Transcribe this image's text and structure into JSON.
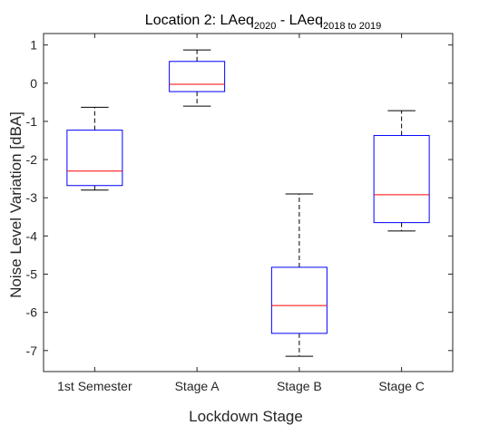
{
  "chart_data": {
    "type": "box",
    "title": {
      "parts": [
        {
          "text": "Location 2: LAeq",
          "sub": false
        },
        {
          "text": "2020",
          "sub": true
        },
        {
          "text": " - LAeq",
          "sub": false
        },
        {
          "text": "2018 to 2019",
          "sub": true
        }
      ]
    },
    "xlabel": "Lockdown Stage",
    "ylabel": "Noise Level Variation [dBA]",
    "categories": [
      "1st Semester",
      "Stage A",
      "Stage B",
      "Stage C"
    ],
    "boxes": [
      {
        "category": "1st Semester",
        "whisker_low": -2.8,
        "q1": -2.68,
        "median": -2.3,
        "q3": -1.23,
        "whisker_high": -0.63
      },
      {
        "category": "Stage A",
        "whisker_low": -0.6,
        "q1": -0.22,
        "median": -0.03,
        "q3": 0.57,
        "whisker_high": 0.87
      },
      {
        "category": "Stage B",
        "whisker_low": -7.15,
        "q1": -6.55,
        "median": -5.82,
        "q3": -4.82,
        "whisker_high": -2.9
      },
      {
        "category": "Stage C",
        "whisker_low": -3.87,
        "q1": -3.65,
        "median": -2.92,
        "q3": -1.37,
        "whisker_high": -0.72
      }
    ],
    "ylim": [
      -7.55,
      1.3
    ],
    "yticks": [
      -7,
      -6,
      -5,
      -4,
      -3,
      -2,
      -1,
      0,
      1
    ],
    "grid": false,
    "colors": {
      "box": "#0000ff",
      "median": "#ff0000",
      "whisker": "#000000",
      "axis": "#262626"
    }
  }
}
